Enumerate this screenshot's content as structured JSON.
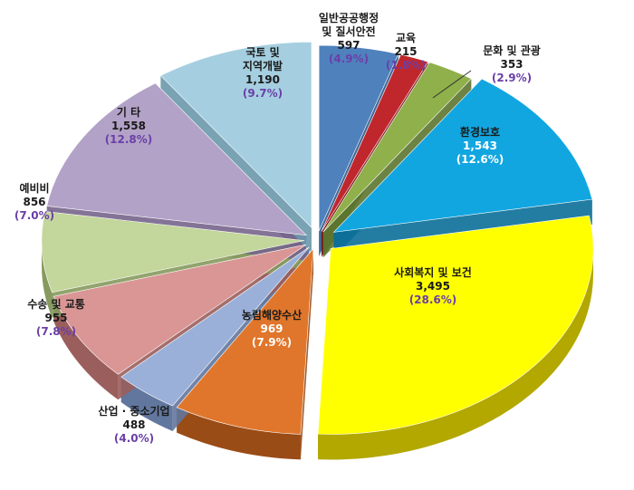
{
  "chart_data": {
    "type": "pie",
    "title": "",
    "slices": [
      {
        "label": [
          "일반공공행정",
          "및 질서안전"
        ],
        "value": "597",
        "percent": "(4.9%)",
        "color": "#4f81bd",
        "side": "#2e5a8c"
      },
      {
        "label": [
          "교육"
        ],
        "value": "215",
        "percent": "(1.8%)",
        "color": "#c0272d",
        "side": "#7d1518"
      },
      {
        "label": [
          "문화 및 관광"
        ],
        "value": "353",
        "percent": "(2.9%)",
        "color": "#8fb04a",
        "side": "#5c7630"
      },
      {
        "label": [
          "환경보호"
        ],
        "value": "1,543",
        "percent": "(12.6%)",
        "color": "#12a6e0",
        "side": "#0b6f98"
      },
      {
        "label": [
          "사회복지 및 보건"
        ],
        "value": "3,495",
        "percent": "(28.6%)",
        "color": "#ffff00",
        "side": "#b3a800"
      },
      {
        "label": [
          "농림해양수산"
        ],
        "value": "969",
        "percent": "(7.9%)",
        "color": "#e0762b",
        "side": "#9a4c16"
      },
      {
        "label": [
          "산업 · 중소기업"
        ],
        "value": "488",
        "percent": "(4.0%)",
        "color": "#9bb0d8",
        "side": "#62779e"
      },
      {
        "label": [
          "수송 및 교통"
        ],
        "value": "955",
        "percent": "(7.8%)",
        "color": "#d99694",
        "side": "#9a5e5c"
      },
      {
        "label": [
          "예비비"
        ],
        "value": "856",
        "percent": "(7.0%)",
        "color": "#c3d69b",
        "side": "#869a5e"
      },
      {
        "label": [
          "기 타"
        ],
        "value": "1,558",
        "percent": "(12.8%)",
        "color": "#b3a2c7",
        "side": "#75658c"
      },
      {
        "label": [
          "국토 및",
          "지역개발"
        ],
        "value": "1,190",
        "percent": "(9.7%)",
        "color": "#a5cfe0",
        "side": "#6a98ab"
      }
    ]
  }
}
